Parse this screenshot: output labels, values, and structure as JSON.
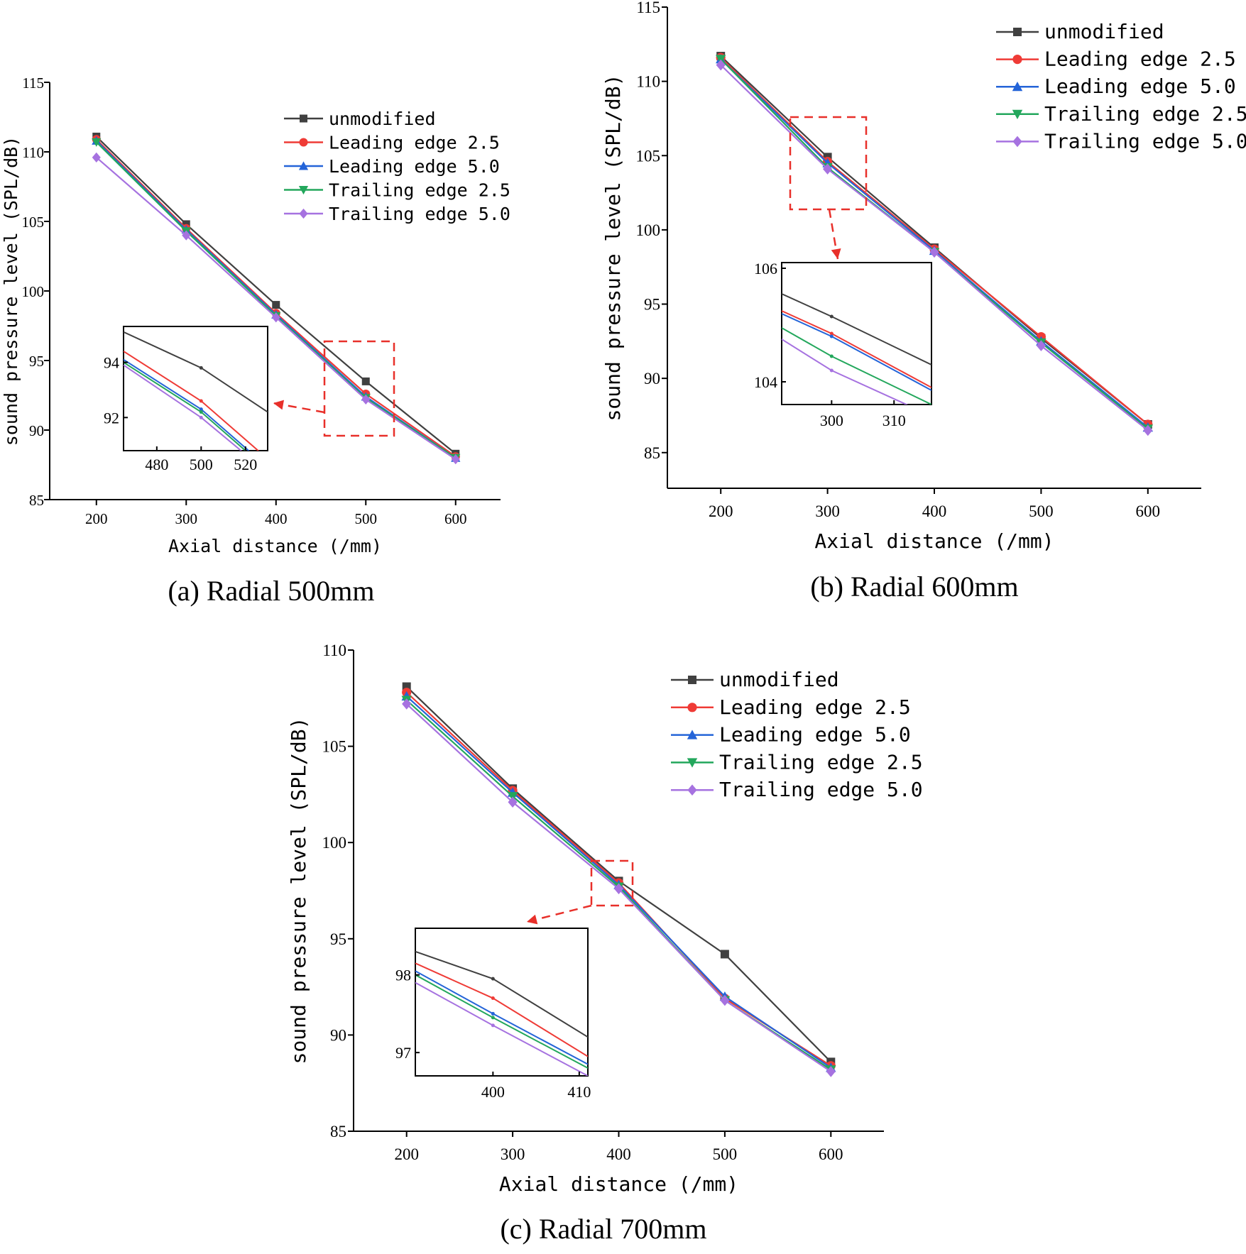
{
  "series_styles": [
    {
      "key": "unmodified",
      "color": "#404040",
      "marker": "square"
    },
    {
      "key": "leading_2_5",
      "color": "#ef3b36",
      "marker": "circle"
    },
    {
      "key": "leading_5_0",
      "color": "#2464d8",
      "marker": "triangle-up"
    },
    {
      "key": "trailing_2_5",
      "color": "#23a75c",
      "marker": "triangle-down"
    },
    {
      "key": "trailing_5_0",
      "color": "#a672e0",
      "marker": "diamond"
    }
  ],
  "chart_data": [
    {
      "type": "line",
      "caption": "(a) Radial 500mm",
      "xlabel": "Axial distance (/mm)",
      "ylabel": "sound pressure level (SPL/dB)",
      "x": [
        200,
        300,
        400,
        500,
        600
      ],
      "xticks": [
        "200",
        "300",
        "400",
        "500",
        "600"
      ],
      "xlim": [
        148,
        650
      ],
      "ylim": [
        85,
        115
      ],
      "yticks": [
        "85",
        "90",
        "95",
        "100",
        "105",
        "110",
        "115"
      ],
      "series": [
        {
          "name": "unmodified",
          "values": [
            111.1,
            104.8,
            99.0,
            93.5,
            88.3
          ]
        },
        {
          "name": "Leading edge 2.5",
          "values": [
            110.9,
            104.5,
            98.4,
            92.6,
            88.1
          ]
        },
        {
          "name": "Leading edge 5.0",
          "values": [
            110.8,
            104.4,
            98.3,
            92.4,
            88.0
          ]
        },
        {
          "name": "Trailing edge 2.5",
          "values": [
            110.7,
            104.3,
            98.2,
            92.3,
            88.0
          ]
        },
        {
          "name": "Trailing edge 5.0",
          "values": [
            109.6,
            104.0,
            98.1,
            92.2,
            87.9
          ]
        }
      ],
      "inset": {
        "xlim": [
          465,
          530
        ],
        "ylim": [
          90.8,
          95.3
        ],
        "xticks": [
          "480",
          "500",
          "520"
        ],
        "yticks": [
          "92",
          "94"
        ],
        "series": [
          {
            "values": [
              [
                465,
                95.1
              ],
              [
                500,
                93.8
              ],
              [
                530,
                92.2
              ]
            ]
          },
          {
            "values": [
              [
                465,
                94.4
              ],
              [
                500,
                92.6
              ],
              [
                530,
                90.5
              ]
            ]
          },
          {
            "values": [
              [
                465,
                94.1
              ],
              [
                500,
                92.3
              ],
              [
                530,
                90.2
              ]
            ]
          },
          {
            "values": [
              [
                465,
                94.0
              ],
              [
                500,
                92.2
              ],
              [
                530,
                90.1
              ]
            ]
          },
          {
            "values": [
              [
                465,
                93.9
              ],
              [
                500,
                92.0
              ],
              [
                530,
                90.0
              ]
            ]
          }
        ]
      }
    },
    {
      "type": "line",
      "caption": "(b) Radial 600mm",
      "xlabel": "Axial distance (/mm)",
      "ylabel": "sound pressure level (SPL/dB)",
      "x": [
        200,
        300,
        400,
        500,
        600
      ],
      "xticks": [
        "200",
        "300",
        "400",
        "500",
        "600"
      ],
      "xlim": [
        150,
        650
      ],
      "ylim": [
        82.6,
        115
      ],
      "yticks": [
        "85",
        "90",
        "95",
        "100",
        "105",
        "110",
        "115"
      ],
      "series": [
        {
          "name": "unmodified",
          "values": [
            111.7,
            104.9,
            98.8,
            92.7,
            86.9
          ]
        },
        {
          "name": "Leading edge 2.5",
          "values": [
            111.6,
            104.6,
            98.7,
            92.8,
            86.9
          ]
        },
        {
          "name": "Leading edge 5.0",
          "values": [
            111.5,
            104.5,
            98.6,
            92.5,
            86.7
          ]
        },
        {
          "name": "Trailing edge 2.5",
          "values": [
            111.5,
            104.2,
            98.5,
            92.4,
            86.6
          ]
        },
        {
          "name": "Trailing edge 5.0",
          "values": [
            111.1,
            104.1,
            98.5,
            92.2,
            86.5
          ]
        }
      ],
      "inset": {
        "xlim": [
          292,
          316
        ],
        "ylim": [
          103.6,
          106.1
        ],
        "xticks": [
          "300",
          "310"
        ],
        "yticks": [
          "104",
          "106"
        ],
        "series": [
          {
            "values": [
              [
                292,
                105.55
              ],
              [
                300,
                105.15
              ],
              [
                316,
                104.3
              ]
            ]
          },
          {
            "values": [
              [
                292,
                105.25
              ],
              [
                300,
                104.85
              ],
              [
                316,
                103.9
              ]
            ]
          },
          {
            "values": [
              [
                292,
                105.2
              ],
              [
                300,
                104.8
              ],
              [
                316,
                103.85
              ]
            ]
          },
          {
            "values": [
              [
                292,
                104.95
              ],
              [
                300,
                104.45
              ],
              [
                316,
                103.6
              ]
            ]
          },
          {
            "values": [
              [
                292,
                104.75
              ],
              [
                300,
                104.2
              ],
              [
                316,
                103.4
              ]
            ]
          }
        ]
      }
    },
    {
      "type": "line",
      "caption": "(c) Radial 700mm",
      "xlabel": "Axial distance (/mm)",
      "ylabel": "sound pressure level (SPL/dB)",
      "x": [
        200,
        300,
        400,
        500,
        600
      ],
      "xticks": [
        "200",
        "300",
        "400",
        "500",
        "600"
      ],
      "xlim": [
        150,
        650
      ],
      "ylim": [
        85,
        110
      ],
      "yticks": [
        "85",
        "90",
        "95",
        "100",
        "105",
        "110"
      ],
      "series": [
        {
          "name": "unmodified",
          "values": [
            108.1,
            102.8,
            98.0,
            94.2,
            88.6
          ]
        },
        {
          "name": "Leading edge 2.5",
          "values": [
            107.8,
            102.7,
            97.9,
            91.9,
            88.4
          ]
        },
        {
          "name": "Leading edge 5.0",
          "values": [
            107.6,
            102.6,
            97.8,
            92.0,
            88.3
          ]
        },
        {
          "name": "Trailing edge 2.5",
          "values": [
            107.4,
            102.4,
            97.7,
            91.8,
            88.2
          ]
        },
        {
          "name": "Trailing edge 5.0",
          "values": [
            107.2,
            102.1,
            97.6,
            91.8,
            88.1
          ]
        }
      ],
      "inset": {
        "xlim": [
          391,
          411
        ],
        "ylim": [
          96.7,
          98.6
        ],
        "xticks": [
          "400",
          "410"
        ],
        "yticks": [
          "97",
          "98"
        ],
        "series": [
          {
            "values": [
              [
                391,
                98.3
              ],
              [
                400,
                97.95
              ],
              [
                411,
                97.2
              ]
            ]
          },
          {
            "values": [
              [
                391,
                98.15
              ],
              [
                400,
                97.7
              ],
              [
                411,
                96.95
              ]
            ]
          },
          {
            "values": [
              [
                391,
                98.05
              ],
              [
                400,
                97.5
              ],
              [
                411,
                96.85
              ]
            ]
          },
          {
            "values": [
              [
                391,
                98.0
              ],
              [
                400,
                97.45
              ],
              [
                411,
                96.8
              ]
            ]
          },
          {
            "values": [
              [
                391,
                97.9
              ],
              [
                400,
                97.35
              ],
              [
                411,
                96.7
              ]
            ]
          }
        ]
      }
    }
  ]
}
